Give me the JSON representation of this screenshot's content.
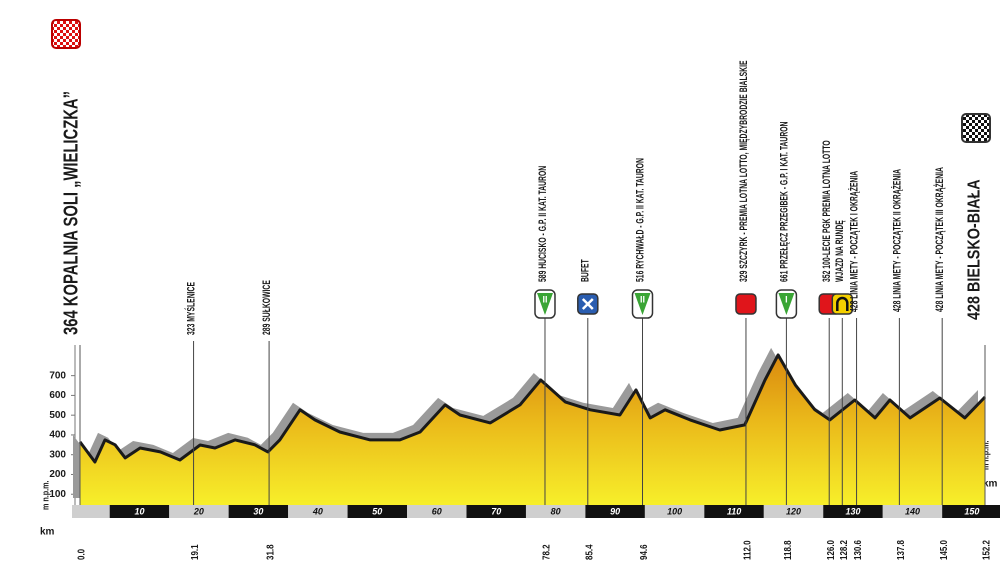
{
  "chart_data": {
    "type": "elevation-profile",
    "start": {
      "label": "364 KOPALNIA SOLI „WIELICZKA”",
      "km": {
        "value": 0,
        "label": "0.0"
      }
    },
    "finish": {
      "label": "428 BIELSKO-BIAŁA",
      "km": 152.2
    },
    "waypoints": [
      {
        "km": 19.1,
        "label": "323 MYŚLENICE"
      },
      {
        "km": 31.8,
        "label": "289 SUŁKOWICE"
      },
      {
        "km": 78.2,
        "label": "589 HUCISKO - G.P. II KAT. TAURON",
        "icon": "climb",
        "icon_text": "II"
      },
      {
        "km": 85.4,
        "label": "BUFET",
        "icon": "feed"
      },
      {
        "km": 94.6,
        "label": "516 RYCHWAŁD - G.P. II KAT. TAURON",
        "icon": "climb",
        "icon_text": "II"
      },
      {
        "km": {
          "value": 112,
          "label": "112.0"
        },
        "label": "329 SZCZYRK - PREMIA LOTNA LOTTO, MIĘDZYBRODZIE BIALSKIE",
        "icon": "sprint"
      },
      {
        "km": 118.8,
        "label": "661 PRZEŁĘCZ PRZEGIBEK - G.P. I KAT. TAURON",
        "icon": "climb",
        "icon_text": "I"
      },
      {
        "km": {
          "value": 126,
          "label": "126.0"
        },
        "label": "352 100-LECIE PGK PREMIA LOTNA LOTTO",
        "icon": "sprint"
      },
      {
        "km": 128.2,
        "label": "WJAZD NA RUNDĘ",
        "icon": "circuit"
      },
      {
        "km": 130.6,
        "label": "428 LINIA METY - POCZĄTEK I OKRĄŻENIA"
      },
      {
        "km": 137.8,
        "label": "428 LINIA METY - POCZĄTEK II OKRĄŻENIA"
      },
      {
        "km": {
          "value": 145,
          "label": "145.0"
        },
        "label": "428 LINIA METY - POCZĄTEK III OKRĄŻENIA"
      }
    ],
    "profile": {
      "color": "#e3a512",
      "x": [
        0,
        2.5,
        4.2,
        5.9,
        7.6,
        10.1,
        13.5,
        16.8,
        20.2,
        22.7,
        26.1,
        29.4,
        31.6,
        33.6,
        37.0,
        39.5,
        43.7,
        48.8,
        53.8,
        57.2,
        61.4,
        63.9,
        69.0,
        74.0,
        77.5,
        81.6,
        85.8,
        90.8,
        93.5,
        95.9,
        98.4,
        102.6,
        107.6,
        111.8,
        115.2,
        117.4,
        120.3,
        123.6,
        126.1,
        130.3,
        133.7,
        136.2,
        139.6,
        144.6,
        148.8,
        152.2
      ],
      "values": [
        365,
        263,
        375,
        350,
        284,
        334,
        314,
        273,
        349,
        334,
        375,
        350,
        314,
        375,
        527,
        476,
        415,
        375,
        375,
        415,
        552,
        501,
        461,
        552,
        678,
        567,
        527,
        501,
        628,
        486,
        527,
        476,
        425,
        451,
        678,
        805,
        653,
        527,
        476,
        577,
        486,
        577,
        486,
        587,
        486,
        592
      ]
    },
    "xlim": [
      0,
      152.2
    ],
    "xticks": [
      10,
      20,
      30,
      40,
      50,
      60,
      70,
      80,
      90,
      100,
      110,
      120,
      130,
      140,
      150
    ],
    "ylim": [
      0,
      850
    ],
    "yticks": [
      100,
      200,
      300,
      400,
      500,
      600,
      700
    ],
    "y_label": "m n.p.m.",
    "x_label": "km"
  }
}
